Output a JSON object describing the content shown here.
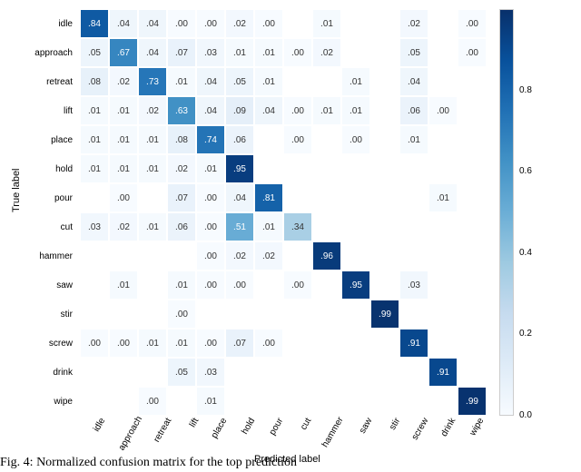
{
  "matrix": {
    "type": "heatmap",
    "labels": [
      "idle",
      "approach",
      "retreat",
      "lift",
      "place",
      "hold",
      "pour",
      "cut",
      "hammer",
      "saw",
      "stir",
      "screw",
      "drink",
      "wipe"
    ],
    "xlabel": "Predicted label",
    "ylabel": "True label",
    "label_fontsize": 11,
    "tick_fontsize": 10,
    "cell_fontsize": 10,
    "decimals": 2,
    "background_color": "#ffffff",
    "colormap": {
      "stops": [
        {
          "v": 0.0,
          "c": "#f7fbff"
        },
        {
          "v": 0.125,
          "c": "#deebf7"
        },
        {
          "v": 0.25,
          "c": "#c6dbef"
        },
        {
          "v": 0.375,
          "c": "#9ecae1"
        },
        {
          "v": 0.5,
          "c": "#6baed6"
        },
        {
          "v": 0.625,
          "c": "#4292c6"
        },
        {
          "v": 0.75,
          "c": "#2171b5"
        },
        {
          "v": 0.875,
          "c": "#08519c"
        },
        {
          "v": 1.0,
          "c": "#08306b"
        }
      ],
      "text_light": "#ffffff",
      "text_dark": "#333333",
      "text_threshold": 0.5
    },
    "colorbar": {
      "ticks": [
        0.0,
        0.2,
        0.4,
        0.6,
        0.8
      ],
      "min": 0.0,
      "max": 1.0
    },
    "data": [
      [
        0.84,
        0.04,
        0.04,
        0.0,
        0.0,
        0.02,
        0.0,
        null,
        0.01,
        null,
        null,
        0.02,
        null,
        0.0
      ],
      [
        0.05,
        0.67,
        0.04,
        0.07,
        0.03,
        0.01,
        0.01,
        0.0,
        0.02,
        null,
        null,
        0.05,
        null,
        0.0
      ],
      [
        0.08,
        0.02,
        0.73,
        0.01,
        0.04,
        0.05,
        0.01,
        null,
        null,
        0.01,
        null,
        0.04,
        null,
        null
      ],
      [
        0.01,
        0.01,
        0.02,
        0.63,
        0.04,
        0.09,
        0.04,
        0.0,
        0.01,
        0.01,
        null,
        0.06,
        0.0,
        null
      ],
      [
        0.01,
        0.01,
        0.01,
        0.08,
        0.74,
        0.06,
        null,
        0.0,
        null,
        0.0,
        null,
        0.01,
        null,
        null
      ],
      [
        0.01,
        0.01,
        0.01,
        0.02,
        0.01,
        0.95,
        null,
        null,
        null,
        null,
        null,
        null,
        null,
        null
      ],
      [
        null,
        0.0,
        null,
        0.07,
        0.0,
        0.04,
        0.81,
        null,
        null,
        null,
        null,
        null,
        0.01,
        null
      ],
      [
        0.03,
        0.02,
        0.01,
        0.06,
        0.0,
        0.51,
        0.01,
        0.34,
        null,
        null,
        null,
        null,
        null,
        null
      ],
      [
        null,
        null,
        null,
        null,
        0.0,
        0.02,
        0.02,
        null,
        0.96,
        null,
        null,
        null,
        null,
        null
      ],
      [
        null,
        0.01,
        null,
        0.01,
        0.0,
        0.0,
        null,
        0.0,
        null,
        0.95,
        null,
        0.03,
        null,
        null
      ],
      [
        null,
        null,
        null,
        0.0,
        null,
        null,
        null,
        null,
        null,
        null,
        0.99,
        null,
        null,
        null
      ],
      [
        0.0,
        0.0,
        0.01,
        0.01,
        0.0,
        0.07,
        0.0,
        null,
        null,
        null,
        null,
        0.91,
        null,
        null
      ],
      [
        null,
        null,
        null,
        0.05,
        0.03,
        null,
        null,
        null,
        null,
        null,
        null,
        null,
        0.91,
        null
      ],
      [
        null,
        null,
        0.0,
        null,
        0.01,
        null,
        null,
        null,
        null,
        null,
        null,
        null,
        null,
        0.99
      ]
    ]
  },
  "caption": "Fig. 4: Normalized confusion matrix for the top prediction"
}
